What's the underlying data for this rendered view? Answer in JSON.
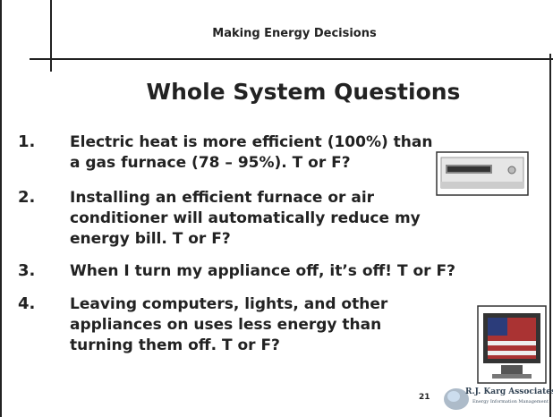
{
  "header": {
    "title": "Making Energy Decisions"
  },
  "title": "Whole System Questions",
  "items": [
    {
      "number": "1.",
      "lines": [
        "Electric heat is more efficient (100%) than",
        "a gas furnace (78 – 95%). T or F?"
      ]
    },
    {
      "number": "2.",
      "lines": [
        "Installing an efficient furnace or air",
        "conditioner will automatically reduce my",
        "energy bill. T or F?"
      ]
    },
    {
      "number": "3.",
      "lines": [
        "When I turn my appliance off, it’s off! T or F?"
      ]
    },
    {
      "number": "4.",
      "lines": [
        "Leaving computers, lights, and other",
        "appliances on uses less energy than",
        "turning them off. T or F?"
      ]
    }
  ],
  "page_number": "21",
  "logo": {
    "name": "R.J. Karg Associates",
    "tagline": "Energy Information Management"
  }
}
